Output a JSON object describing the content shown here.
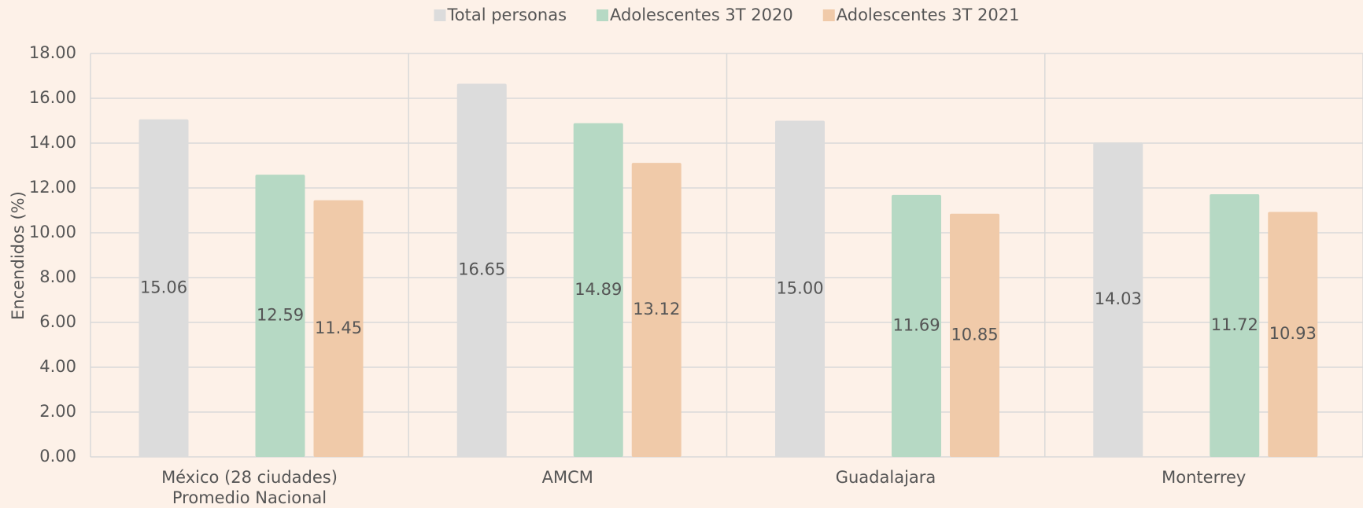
{
  "chart_data": {
    "type": "bar",
    "y_label": "Encendidos (%)",
    "categories": [
      "México (28 ciudades)\nPromedio Nacional",
      "AMCM",
      "Guadalajara",
      "Monterrey"
    ],
    "series": [
      {
        "name": "Total personas",
        "color": "#dcdcdc",
        "values": [
          15.06,
          16.65,
          15.0,
          14.03
        ],
        "value_labels": [
          "15.06",
          "16.65",
          "15.00",
          "14.03"
        ]
      },
      {
        "name": "Adolescentes 3T 2020",
        "color": "#b6d9c4",
        "values": [
          12.59,
          14.89,
          11.69,
          11.72
        ],
        "value_labels": [
          "12.59",
          "14.89",
          "11.69",
          "11.72"
        ]
      },
      {
        "name": "Adolescentes 3T 2021",
        "color": "#f0caa9",
        "values": [
          11.45,
          13.12,
          10.85,
          10.93
        ],
        "value_labels": [
          "11.45",
          "13.12",
          "10.85",
          "10.93"
        ]
      }
    ],
    "ylim": [
      0,
      18
    ],
    "yticks": [
      {
        "value": 0,
        "label": "0.00"
      },
      {
        "value": 2,
        "label": "2.00"
      },
      {
        "value": 4,
        "label": "4.00"
      },
      {
        "value": 6,
        "label": "6.00"
      },
      {
        "value": 8,
        "label": "8.00"
      },
      {
        "value": 10,
        "label": "10.00"
      },
      {
        "value": 12,
        "label": "12.00"
      },
      {
        "value": 14,
        "label": "14.00"
      },
      {
        "value": 16,
        "label": "16.00"
      },
      {
        "value": 18,
        "label": "18.00"
      }
    ],
    "grid": true,
    "legend": "top"
  }
}
